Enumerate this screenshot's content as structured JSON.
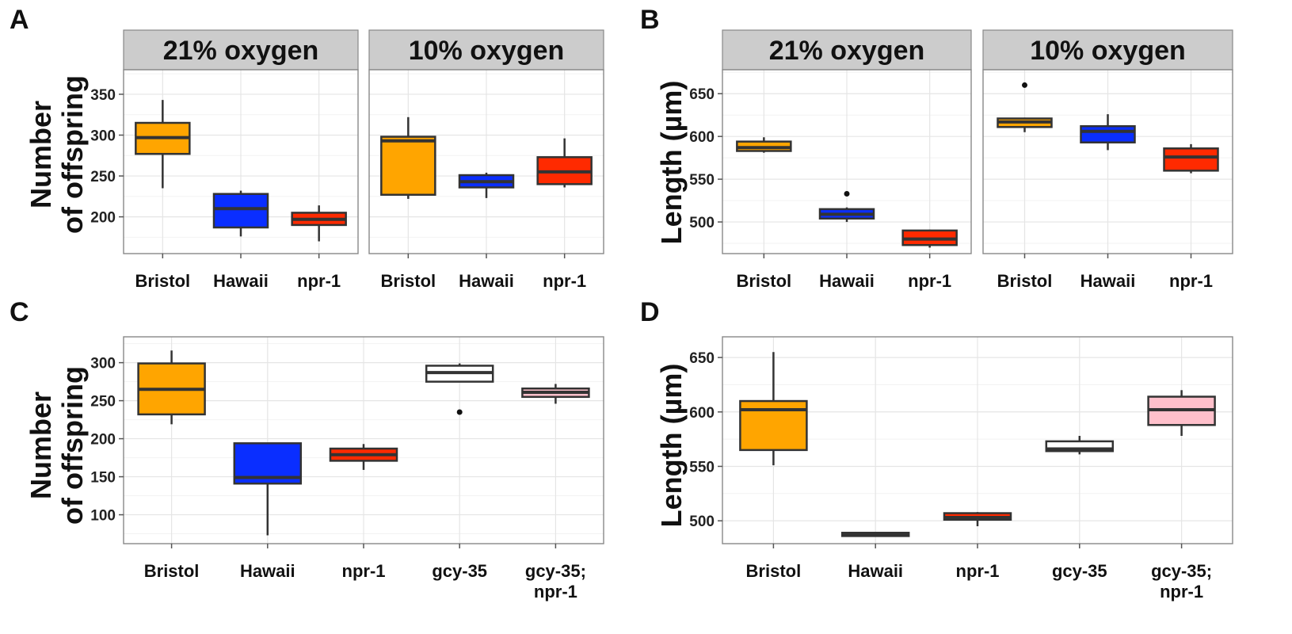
{
  "colors": {
    "Bristol": "#FFA500",
    "Hawaii": "#0A2EFF",
    "npr-1": "#FF2A00",
    "gcy-35": "#FFFFFF",
    "gcy-35; npr-1": "#FFC0CB",
    "strip_bg": "#CCCCCC",
    "grid": "#E5E5E5",
    "box_line": "#333333"
  },
  "chart_data": [
    {
      "id": "A",
      "type": "boxplot",
      "letter": "A",
      "ylabel": [
        "Number",
        "of offspring"
      ],
      "ylim": [
        155,
        380
      ],
      "yticks": [
        200,
        250,
        300,
        350
      ],
      "facets": [
        {
          "strip": "21% oxygen",
          "categories": [
            "Bristol",
            "Hawaii",
            "npr-1"
          ],
          "boxes": [
            {
              "group": "Bristol",
              "min": 235,
              "q1": 277,
              "median": 297,
              "q3": 315,
              "max": 343,
              "outliers": []
            },
            {
              "group": "Hawaii",
              "min": 176,
              "q1": 187,
              "median": 210,
              "q3": 228,
              "max": 232,
              "outliers": []
            },
            {
              "group": "npr-1",
              "min": 170,
              "q1": 190,
              "median": 197,
              "q3": 205,
              "max": 214,
              "outliers": []
            }
          ]
        },
        {
          "strip": "10% oxygen",
          "categories": [
            "Bristol",
            "Hawaii",
            "npr-1"
          ],
          "boxes": [
            {
              "group": "Bristol",
              "min": 222,
              "q1": 227,
              "median": 293,
              "q3": 298,
              "max": 322,
              "outliers": []
            },
            {
              "group": "Hawaii",
              "min": 223,
              "q1": 236,
              "median": 243,
              "q3": 251,
              "max": 254,
              "outliers": []
            },
            {
              "group": "npr-1",
              "min": 236,
              "q1": 240,
              "median": 255,
              "q3": 273,
              "max": 296,
              "outliers": []
            }
          ]
        }
      ]
    },
    {
      "id": "B",
      "type": "boxplot",
      "letter": "B",
      "ylabel": [
        "Length (µm)"
      ],
      "ylim": [
        463,
        678
      ],
      "yticks": [
        500,
        550,
        600,
        650
      ],
      "facets": [
        {
          "strip": "21% oxygen",
          "categories": [
            "Bristol",
            "Hawaii",
            "npr-1"
          ],
          "boxes": [
            {
              "group": "Bristol",
              "min": 581,
              "q1": 583,
              "median": 587,
              "q3": 594,
              "max": 599,
              "outliers": []
            },
            {
              "group": "Hawaii",
              "min": 500,
              "q1": 504,
              "median": 509,
              "q3": 515,
              "max": 517,
              "outliers": [
                533
              ]
            },
            {
              "group": "npr-1",
              "min": 470,
              "q1": 473,
              "median": 480,
              "q3": 490,
              "max": 491,
              "outliers": []
            }
          ]
        },
        {
          "strip": "10% oxygen",
          "categories": [
            "Bristol",
            "Hawaii",
            "npr-1"
          ],
          "boxes": [
            {
              "group": "Bristol",
              "min": 605,
              "q1": 611,
              "median": 617,
              "q3": 621,
              "max": 622,
              "outliers": [
                660
              ]
            },
            {
              "group": "Hawaii",
              "min": 584,
              "q1": 593,
              "median": 606,
              "q3": 612,
              "max": 626,
              "outliers": []
            },
            {
              "group": "npr-1",
              "min": 557,
              "q1": 560,
              "median": 576,
              "q3": 586,
              "max": 591,
              "outliers": []
            }
          ]
        }
      ]
    },
    {
      "id": "C",
      "type": "boxplot",
      "letter": "C",
      "ylabel": [
        "Number",
        "of offspring"
      ],
      "ylim": [
        62,
        334
      ],
      "yticks": [
        100,
        150,
        200,
        250,
        300
      ],
      "facets": [
        {
          "strip": "",
          "categories": [
            "Bristol",
            "Hawaii",
            "npr-1",
            "gcy-35",
            "gcy-35; npr-1"
          ],
          "category_lines": [
            [
              "Bristol"
            ],
            [
              "Hawaii"
            ],
            [
              "npr-1"
            ],
            [
              "gcy-35"
            ],
            [
              "gcy-35;",
              "npr-1"
            ]
          ],
          "boxes": [
            {
              "group": "Bristol",
              "min": 219,
              "q1": 232,
              "median": 265,
              "q3": 299,
              "max": 316,
              "outliers": []
            },
            {
              "group": "Hawaii",
              "min": 73,
              "q1": 141,
              "median": 149,
              "q3": 194,
              "max": 194,
              "outliers": []
            },
            {
              "group": "npr-1",
              "min": 159,
              "q1": 171,
              "median": 179,
              "q3": 187,
              "max": 193,
              "outliers": []
            },
            {
              "group": "gcy-35",
              "min": 275,
              "q1": 275,
              "median": 287,
              "q3": 296,
              "max": 299,
              "outliers": [
                235
              ]
            },
            {
              "group": "gcy-35; npr-1",
              "min": 246,
              "q1": 255,
              "median": 261,
              "q3": 266,
              "max": 272,
              "outliers": []
            }
          ]
        }
      ]
    },
    {
      "id": "D",
      "type": "boxplot",
      "letter": "D",
      "ylabel": [
        "Length (µm)"
      ],
      "ylim": [
        479,
        669
      ],
      "yticks": [
        500,
        550,
        600,
        650
      ],
      "facets": [
        {
          "strip": "",
          "categories": [
            "Bristol",
            "Hawaii",
            "npr-1",
            "gcy-35",
            "gcy-35; npr-1"
          ],
          "category_lines": [
            [
              "Bristol"
            ],
            [
              "Hawaii"
            ],
            [
              "npr-1"
            ],
            [
              "gcy-35"
            ],
            [
              "gcy-35;",
              "npr-1"
            ]
          ],
          "boxes": [
            {
              "group": "Bristol",
              "min": 551,
              "q1": 565,
              "median": 602,
              "q3": 610,
              "max": 655,
              "outliers": []
            },
            {
              "group": "Hawaii",
              "min": 486,
              "q1": 486,
              "median": 488,
              "q3": 489,
              "max": 489,
              "outliers": []
            },
            {
              "group": "npr-1",
              "min": 495,
              "q1": 501,
              "median": 503,
              "q3": 507,
              "max": 508,
              "outliers": []
            },
            {
              "group": "gcy-35",
              "min": 561,
              "q1": 564,
              "median": 566,
              "q3": 573,
              "max": 578,
              "outliers": []
            },
            {
              "group": "gcy-35; npr-1",
              "min": 578,
              "q1": 588,
              "median": 602,
              "q3": 614,
              "max": 620,
              "outliers": []
            }
          ]
        }
      ]
    }
  ]
}
